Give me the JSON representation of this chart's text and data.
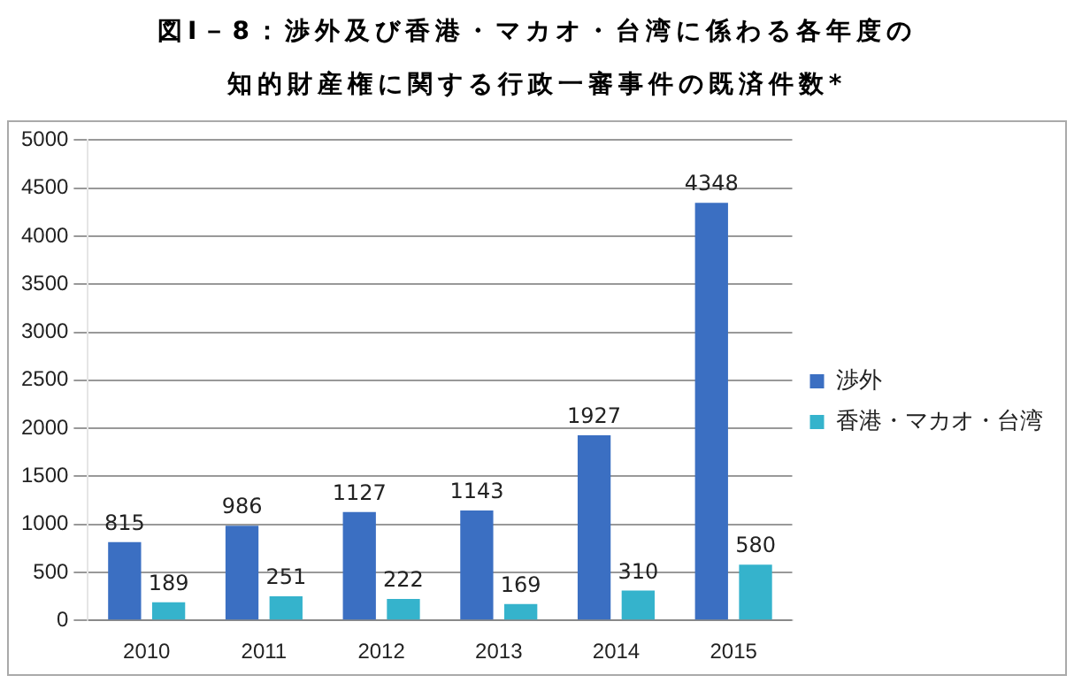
{
  "chart_data": {
    "type": "bar",
    "title": "図I－8：渉外及び香港・マカオ・台湾に係わる各年度の知的財産権に関する行政一審事件の既済件数*",
    "categories": [
      "2010",
      "2011",
      "2012",
      "2013",
      "2014",
      "2015"
    ],
    "series": [
      {
        "name": "渉外",
        "color": "#3b6fc2",
        "values": [
          815,
          986,
          1127,
          1143,
          1927,
          4348
        ]
      },
      {
        "name": "香港・マカオ・台湾",
        "color": "#35b3cc",
        "values": [
          189,
          251,
          222,
          169,
          310,
          580
        ]
      }
    ],
    "ylim": [
      0,
      5000
    ],
    "yticks": [
      0,
      500,
      1000,
      1500,
      2000,
      2500,
      3000,
      3500,
      4000,
      4500,
      5000
    ],
    "grid": "y",
    "legend": "right",
    "data_labels": true
  }
}
